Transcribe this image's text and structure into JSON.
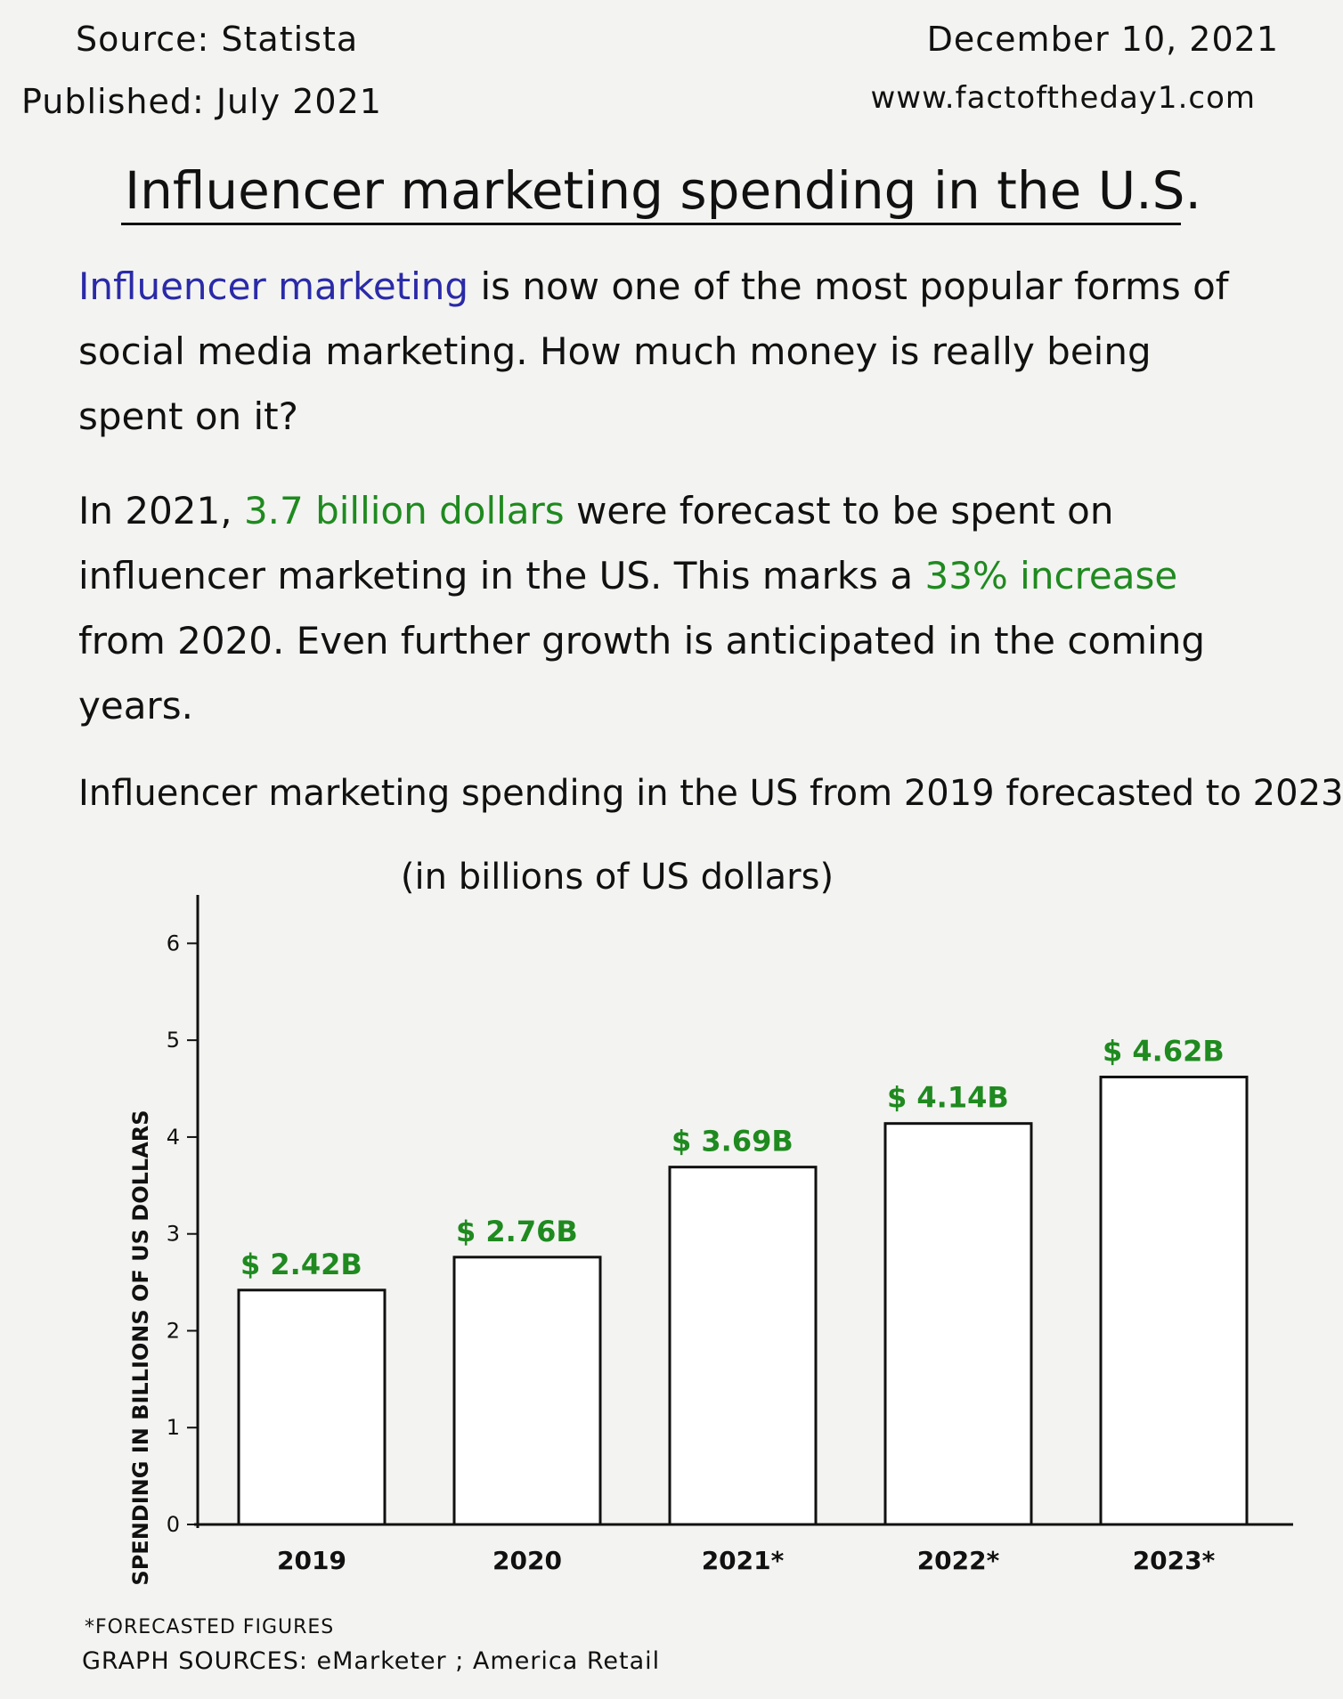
{
  "header": {
    "source": "Source: Statista",
    "published": "Published: July 2021",
    "date": "December 10, 2021",
    "website": "www.factoftheday1.com"
  },
  "title": "Influencer marketing spending in the U.S.",
  "intro": {
    "highlight": "Influencer marketing",
    "rest": " is now one of the most popular forms of social media marketing. How much money is really being spent on it?"
  },
  "details": {
    "part1": "In 2021, ",
    "highlight1": "3.7 billion dollars",
    "part2": " were forecast to be spent on influencer marketing in the US. This marks a ",
    "highlight2": "33% increase",
    "part3": " from 2020. Even further growth is anticipated in the coming years."
  },
  "chart_data": {
    "type": "bar",
    "title": "Influencer marketing spending in the US from 2019 forecasted to 2023",
    "subtitle": "(in billions of US dollars)",
    "ylabel": "SPENDING IN BILLIONS OF US DOLLARS",
    "xlabel": "",
    "categories": [
      "2019",
      "2020",
      "2021*",
      "2022*",
      "2023*"
    ],
    "values": [
      2.42,
      2.76,
      3.69,
      4.14,
      4.62
    ],
    "value_labels": [
      "$ 2.42B",
      "$ 2.76B",
      "$ 3.69B",
      "$ 4.14B",
      "$ 4.62B"
    ],
    "ylim": [
      0,
      6.5
    ],
    "yticks": [
      0,
      1,
      2,
      3,
      4,
      5,
      6
    ],
    "grid": false,
    "bar_fill": "#ffffff",
    "label_color": "#1f8a1f"
  },
  "footer": {
    "footnote": "*FORECASTED FIGURES",
    "graph_sources": "GRAPH SOURCES: eMarketer ; America Retail"
  }
}
